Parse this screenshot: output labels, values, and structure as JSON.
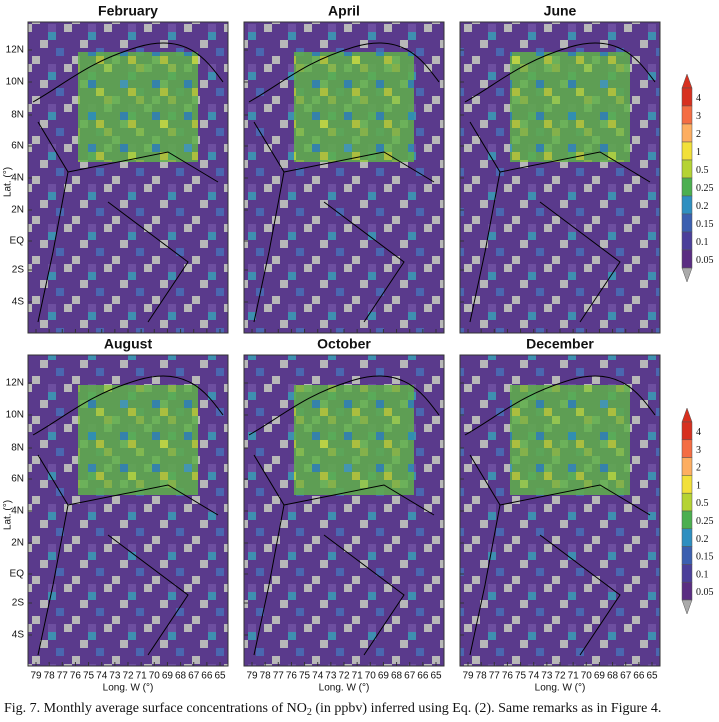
{
  "figure": {
    "panels": [
      {
        "title": "February"
      },
      {
        "title": "April"
      },
      {
        "title": "June"
      },
      {
        "title": "August"
      },
      {
        "title": "October"
      },
      {
        "title": "December"
      }
    ],
    "lat_ticks": [
      "12N",
      "10N",
      "8N",
      "6N",
      "4N",
      "2N",
      "EQ",
      "2S",
      "4S"
    ],
    "lon_ticks": [
      "79",
      "78",
      "77",
      "76",
      "75",
      "74",
      "73",
      "72",
      "71",
      "70",
      "69",
      "68",
      "67",
      "66",
      "65"
    ],
    "lat_label": "Lat. (°)",
    "lon_label": "Long. W (°)",
    "colorbar_levels": [
      "4",
      "3",
      "2",
      "1",
      "0.5",
      "0.25",
      "0.2",
      "0.15",
      "0.1",
      "0.05"
    ],
    "caption": {
      "before": "Fig. 7. Monthly average surface concentrations of NO",
      "sub": "2",
      "after": " (in ppbv) inferred using Eq. (2). Same remarks as in Figure 4."
    }
  }
}
